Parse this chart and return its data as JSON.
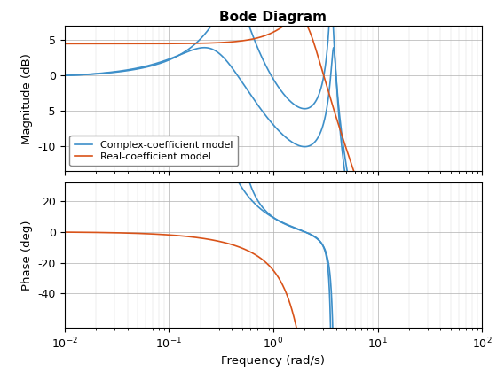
{
  "title": "Bode Diagram",
  "xlabel": "Frequency (rad/s)",
  "ylabel_mag": "Magnitude (dB)",
  "ylabel_phase": "Phase (deg)",
  "freq_range": [
    0.01,
    100
  ],
  "mag_ylim": [
    -13.5,
    7
  ],
  "phase_ylim": [
    -62,
    32
  ],
  "mag_yticks": [
    5,
    0,
    -5,
    -10
  ],
  "phase_yticks": [
    20,
    0,
    -20,
    -40
  ],
  "legend": [
    "Complex-coefficient model",
    "Real-coefficient model"
  ],
  "blue_color": "#3d8fc9",
  "orange_color": "#d95319",
  "title_fontsize": 11,
  "label_fontsize": 9.5,
  "tick_fontsize": 9
}
